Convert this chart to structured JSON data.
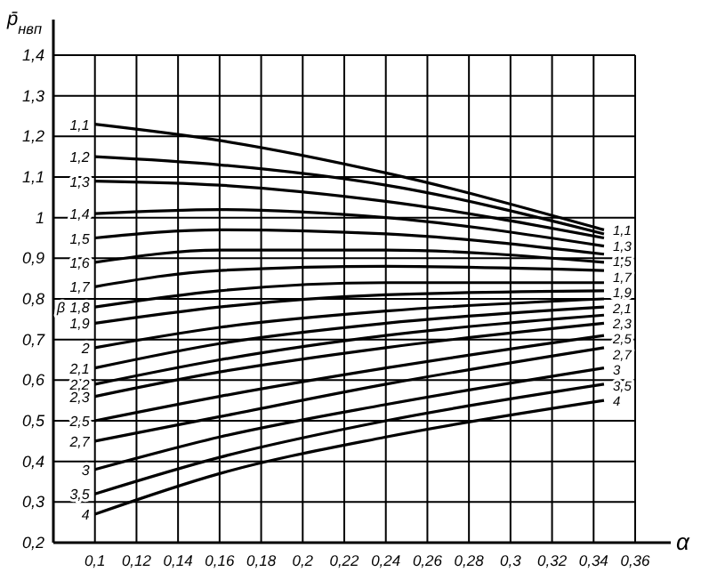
{
  "chart_data": {
    "type": "line",
    "xlabel": "α",
    "ylabel": "p̄$_{нвп}$",
    "legend_title": "β",
    "x": [
      0.1,
      0.16,
      0.24,
      0.345
    ],
    "xlim": [
      0.08,
      0.36
    ],
    "ylim": [
      0.2,
      1.4
    ],
    "xticks": [
      {
        "value": 0.1,
        "label": "0,1"
      },
      {
        "value": 0.12,
        "label": "0,12"
      },
      {
        "value": 0.14,
        "label": "0,14"
      },
      {
        "value": 0.16,
        "label": "0,16"
      },
      {
        "value": 0.18,
        "label": "0,18"
      },
      {
        "value": 0.2,
        "label": "0,2"
      },
      {
        "value": 0.22,
        "label": "0,22"
      },
      {
        "value": 0.24,
        "label": "0,24"
      },
      {
        "value": 0.26,
        "label": "0,26"
      },
      {
        "value": 0.28,
        "label": "0,28"
      },
      {
        "value": 0.3,
        "label": "0,3"
      },
      {
        "value": 0.32,
        "label": "0,32"
      },
      {
        "value": 0.34,
        "label": "0,34"
      },
      {
        "value": 0.36,
        "label": "0,36"
      }
    ],
    "yticks": [
      {
        "value": 0.2,
        "label": "0,2"
      },
      {
        "value": 0.3,
        "label": "0,3"
      },
      {
        "value": 0.4,
        "label": "0,4"
      },
      {
        "value": 0.5,
        "label": "0,5"
      },
      {
        "value": 0.6,
        "label": "0,6"
      },
      {
        "value": 0.7,
        "label": "0,7"
      },
      {
        "value": 0.8,
        "label": "0,8"
      },
      {
        "value": 0.9,
        "label": "0,9"
      },
      1,
      {
        "value": 1.1,
        "label": "1,1"
      },
      {
        "value": 1.2,
        "label": "1,2"
      },
      {
        "value": 1.3,
        "label": "1,3"
      },
      {
        "value": 1.4,
        "label": "1,4"
      }
    ],
    "grid": true,
    "legend": false,
    "marker": "none",
    "line_style": "solid",
    "series": [
      {
        "name": "1,1",
        "color": "#000000",
        "values": [
          1.23,
          1.19,
          1.11,
          0.97
        ]
      },
      {
        "name": "1,2",
        "color": "#000000",
        "values": [
          1.15,
          1.13,
          1.08,
          0.96
        ]
      },
      {
        "name": "1,3",
        "color": "#000000",
        "values": [
          1.09,
          1.08,
          1.04,
          0.95
        ]
      },
      {
        "name": "1,4",
        "color": "#000000",
        "values": [
          1.01,
          1.02,
          1.0,
          0.93
        ]
      },
      {
        "name": "1,5",
        "color": "#000000",
        "values": [
          0.95,
          0.97,
          0.96,
          0.91
        ]
      },
      {
        "name": "1,6",
        "color": "#000000",
        "values": [
          0.89,
          0.92,
          0.92,
          0.89
        ]
      },
      {
        "name": "1,7",
        "color": "#000000",
        "values": [
          0.83,
          0.87,
          0.88,
          0.87
        ]
      },
      {
        "name": "1,8",
        "color": "#000000",
        "values": [
          0.78,
          0.82,
          0.84,
          0.84
        ]
      },
      {
        "name": "1,9",
        "color": "#000000",
        "values": [
          0.74,
          0.78,
          0.81,
          0.82
        ]
      },
      {
        "name": "2",
        "color": "#000000",
        "values": [
          0.68,
          0.73,
          0.77,
          0.8
        ]
      },
      {
        "name": "2,1",
        "color": "#000000",
        "values": [
          0.63,
          0.69,
          0.74,
          0.78
        ]
      },
      {
        "name": "2,2",
        "color": "#000000",
        "values": [
          0.59,
          0.65,
          0.71,
          0.76
        ]
      },
      {
        "name": "2,3",
        "color": "#000000",
        "values": [
          0.56,
          0.62,
          0.68,
          0.74
        ]
      },
      {
        "name": "2,5",
        "color": "#000000",
        "values": [
          0.5,
          0.56,
          0.63,
          0.71
        ]
      },
      {
        "name": "2,7",
        "color": "#000000",
        "values": [
          0.45,
          0.51,
          0.59,
          0.68
        ]
      },
      {
        "name": "3",
        "color": "#000000",
        "values": [
          0.38,
          0.46,
          0.54,
          0.63
        ]
      },
      {
        "name": "3,5",
        "color": "#000000",
        "values": [
          0.32,
          0.41,
          0.5,
          0.59
        ]
      },
      {
        "name": "4",
        "color": "#000000",
        "values": [
          0.27,
          0.37,
          0.46,
          0.55
        ]
      }
    ],
    "annotations": [
      "1,1",
      "1,3",
      "1,5",
      "1,7",
      "1,9",
      "2,1",
      "2,3",
      "2,5",
      "2,7",
      "3",
      "3,5",
      "4"
    ]
  }
}
